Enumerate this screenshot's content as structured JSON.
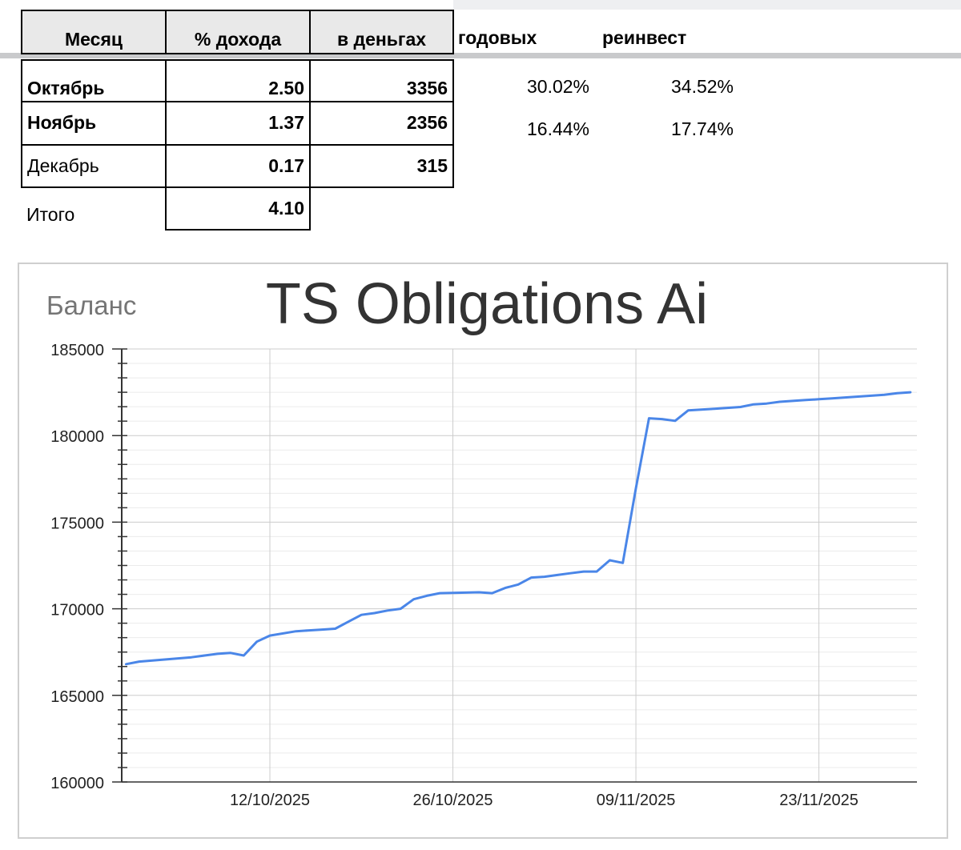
{
  "table": {
    "headers": [
      "Месяц",
      "% дохода",
      "в деньгах",
      "годовых",
      "реинвест"
    ],
    "rows": [
      {
        "month": "Октябрь",
        "pct": "2.50",
        "money": "3356",
        "annual": "30.02%",
        "reinvest": "34.52%"
      },
      {
        "month": "Ноябрь",
        "pct": "1.37",
        "money": "2356",
        "annual": "16.44%",
        "reinvest": "17.74%"
      },
      {
        "month": "Декабрь",
        "pct": "0.17",
        "money": "315"
      }
    ],
    "total": {
      "label": "Итого",
      "pct": "4.10"
    }
  },
  "chart_data": {
    "type": "line",
    "title": "TS Obligations Ai",
    "ylabel": "Баланс",
    "xlabel": "",
    "ylim": [
      160000,
      185000
    ],
    "yticks": [
      "185000",
      "180000",
      "175000",
      "170000",
      "165000",
      "160000"
    ],
    "xticks": [
      "12/10/2025",
      "26/10/2025",
      "09/11/2025",
      "23/11/2025"
    ],
    "grid": true,
    "color": "#4a86e8",
    "series": [
      {
        "x": [
          "2025-10-01",
          "2025-10-02",
          "2025-10-06",
          "2025-10-07",
          "2025-10-08",
          "2025-10-09",
          "2025-10-10",
          "2025-10-11",
          "2025-10-12",
          "2025-10-14",
          "2025-10-15",
          "2025-10-16",
          "2025-10-17",
          "2025-10-18",
          "2025-10-19",
          "2025-10-20",
          "2025-10-21",
          "2025-10-22",
          "2025-10-23",
          "2025-10-24",
          "2025-10-25",
          "2025-10-28",
          "2025-10-29",
          "2025-10-30",
          "2025-10-31",
          "2025-11-01",
          "2025-11-02",
          "2025-11-03",
          "2025-11-04",
          "2025-11-05",
          "2025-11-06",
          "2025-11-07",
          "2025-11-08",
          "2025-11-09",
          "2025-11-10",
          "2025-11-11",
          "2025-11-12",
          "2025-11-13",
          "2025-11-14",
          "2025-11-15",
          "2025-11-16",
          "2025-11-17",
          "2025-11-18",
          "2025-11-19",
          "2025-11-20",
          "2025-11-21",
          "2025-11-22",
          "2025-11-23",
          "2025-11-24",
          "2025-11-25",
          "2025-11-26",
          "2025-11-27",
          "2025-11-28",
          "2025-11-29",
          "2025-11-30"
        ],
        "y": [
          166800,
          166950,
          167200,
          167300,
          167400,
          167450,
          167300,
          168100,
          168450,
          168700,
          168750,
          168800,
          168850,
          169250,
          169650,
          169750,
          169900,
          170000,
          170550,
          170750,
          170900,
          170950,
          170900,
          171200,
          171400,
          171800,
          171850,
          171950,
          172050,
          172150,
          172150,
          172800,
          172650,
          176950,
          181000,
          180950,
          180850,
          181450,
          181500,
          181550,
          181600,
          181650,
          181800,
          181850,
          181950,
          182000,
          182050,
          182100,
          182150,
          182200,
          182250,
          182300,
          182350,
          182450,
          182500
        ]
      }
    ]
  }
}
